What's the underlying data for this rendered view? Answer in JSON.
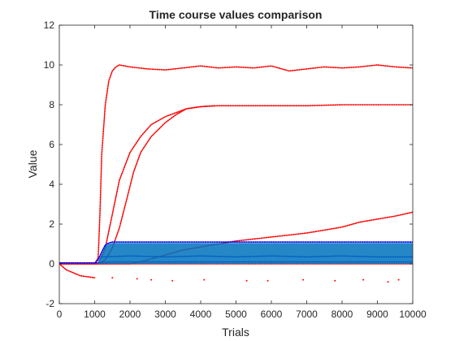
{
  "chart_data": {
    "type": "scatter",
    "title": "Time course values comparison",
    "xlabel": "Trials",
    "ylabel": "Value",
    "xlim": [
      0,
      10000
    ],
    "ylim": [
      -2,
      12
    ],
    "x_ticks": [
      "0",
      "1000",
      "2000",
      "3000",
      "4000",
      "5000",
      "6000",
      "7000",
      "8000",
      "9000",
      "10000"
    ],
    "y_ticks": [
      "-2",
      "0",
      "2",
      "4",
      "6",
      "8",
      "10",
      "12"
    ],
    "grid": false,
    "legend": "none",
    "colors": {
      "red": "#ff0000",
      "blue": "#0000ff",
      "band": "#0072bd",
      "axis": "#262626"
    },
    "series": [
      {
        "color": "#ff0000",
        "style": "dots",
        "x": [
          0,
          500,
          1000,
          1100,
          1150,
          1200,
          1300,
          1400,
          1500,
          1600,
          1700,
          2000,
          2500,
          3000,
          3500,
          4000,
          4500,
          5000,
          5500,
          6000,
          6500,
          7000,
          7500,
          8000,
          8500,
          9000,
          9500,
          10000
        ],
        "y": [
          0,
          0,
          0,
          0.3,
          2.5,
          5.5,
          8.0,
          9.2,
          9.7,
          9.9,
          10.0,
          9.9,
          9.8,
          9.75,
          9.85,
          9.95,
          9.85,
          9.9,
          9.85,
          9.95,
          9.7,
          9.8,
          9.9,
          9.85,
          9.9,
          10.0,
          9.9,
          9.85
        ]
      },
      {
        "color": "#ff0000",
        "style": "dots",
        "x": [
          0,
          500,
          1100,
          1300,
          1500,
          1700,
          2000,
          2300,
          2600,
          3000,
          3300,
          3600,
          4000,
          4500,
          5000,
          6000,
          7000,
          8000,
          9000,
          10000
        ],
        "y": [
          0,
          0,
          0,
          0.8,
          2.5,
          4.2,
          5.6,
          6.4,
          7.0,
          7.4,
          7.6,
          7.8,
          7.9,
          7.95,
          7.95,
          7.95,
          7.95,
          8.0,
          8.0,
          8.0
        ]
      },
      {
        "color": "#ff0000",
        "style": "dots",
        "x": [
          0,
          1100,
          1300,
          1500,
          1700,
          1900,
          2100,
          2300,
          2600,
          3000,
          3300,
          3600,
          4000,
          4400
        ],
        "y": [
          0,
          0,
          0.2,
          0.8,
          1.8,
          3.2,
          4.6,
          5.6,
          6.4,
          7.1,
          7.5,
          7.8,
          7.9,
          7.95
        ]
      },
      {
        "color": "#ff0000",
        "style": "dots",
        "x": [
          0,
          2000,
          2500,
          3000,
          3500,
          4000,
          4500,
          5000,
          5500,
          6000,
          6500,
          7000,
          7500,
          8000,
          8500,
          9000,
          9500,
          10000
        ],
        "y": [
          0,
          0,
          0.2,
          0.45,
          0.7,
          0.85,
          1.0,
          1.15,
          1.25,
          1.35,
          1.45,
          1.55,
          1.7,
          1.85,
          2.1,
          2.25,
          2.4,
          2.6
        ]
      },
      {
        "color": "#ff0000",
        "style": "dots",
        "x": [
          0,
          200,
          400,
          600,
          800,
          1000
        ],
        "y": [
          0,
          -0.3,
          -0.45,
          -0.6,
          -0.65,
          -0.7
        ]
      },
      {
        "color": "#ff0000",
        "style": "dots",
        "x": [
          0,
          10000
        ],
        "y": [
          0,
          0
        ]
      },
      {
        "color": "#ff0000",
        "style": "scatter",
        "x": [
          1500,
          2200,
          2600,
          3200,
          4100,
          5300,
          5900,
          6900,
          7800,
          8600,
          9300,
          9600
        ],
        "y": [
          -0.7,
          -0.75,
          -0.8,
          -0.85,
          -0.8,
          -0.85,
          -0.85,
          -0.8,
          -0.85,
          -0.8,
          -0.9,
          -0.8
        ]
      },
      {
        "color": "#0000ff",
        "style": "dots",
        "x": [
          0,
          500,
          1000,
          1100,
          1200,
          1300,
          1400,
          1500,
          2000,
          3000,
          4000,
          5000,
          6000,
          7000,
          8000,
          9000,
          10000
        ],
        "y": [
          0.05,
          0.05,
          0.05,
          0.2,
          0.6,
          0.95,
          1.05,
          1.1,
          1.1,
          1.1,
          1.1,
          1.1,
          1.1,
          1.1,
          1.1,
          1.1,
          1.1
        ]
      },
      {
        "color": "#0000ff",
        "style": "dots",
        "x": [
          0,
          500,
          1000,
          1500,
          2000,
          3000,
          4000,
          5000,
          6000,
          7000,
          8000,
          9000,
          10000
        ],
        "y": [
          0.05,
          0.05,
          0.05,
          0.1,
          0.1,
          0.1,
          0.1,
          0.1,
          0.1,
          0.1,
          0.1,
          0.1,
          0.1
        ]
      },
      {
        "color": "#0000ff",
        "style": "dots",
        "x": [
          1200,
          2000,
          3000,
          4000,
          5000,
          6000,
          7000,
          8000,
          9000,
          10000
        ],
        "y": [
          0.35,
          0.4,
          0.35,
          0.4,
          0.35,
          0.4,
          0.35,
          0.4,
          0.35,
          0.35
        ]
      },
      {
        "color": "#0072bd",
        "style": "band",
        "x": [
          1100,
          1200,
          1300,
          1400,
          1500,
          10000
        ],
        "y_low": [
          0,
          0,
          0,
          0,
          0,
          0
        ],
        "y_high": [
          0.1,
          0.5,
          0.9,
          1.0,
          1.05,
          1.05
        ]
      }
    ]
  }
}
